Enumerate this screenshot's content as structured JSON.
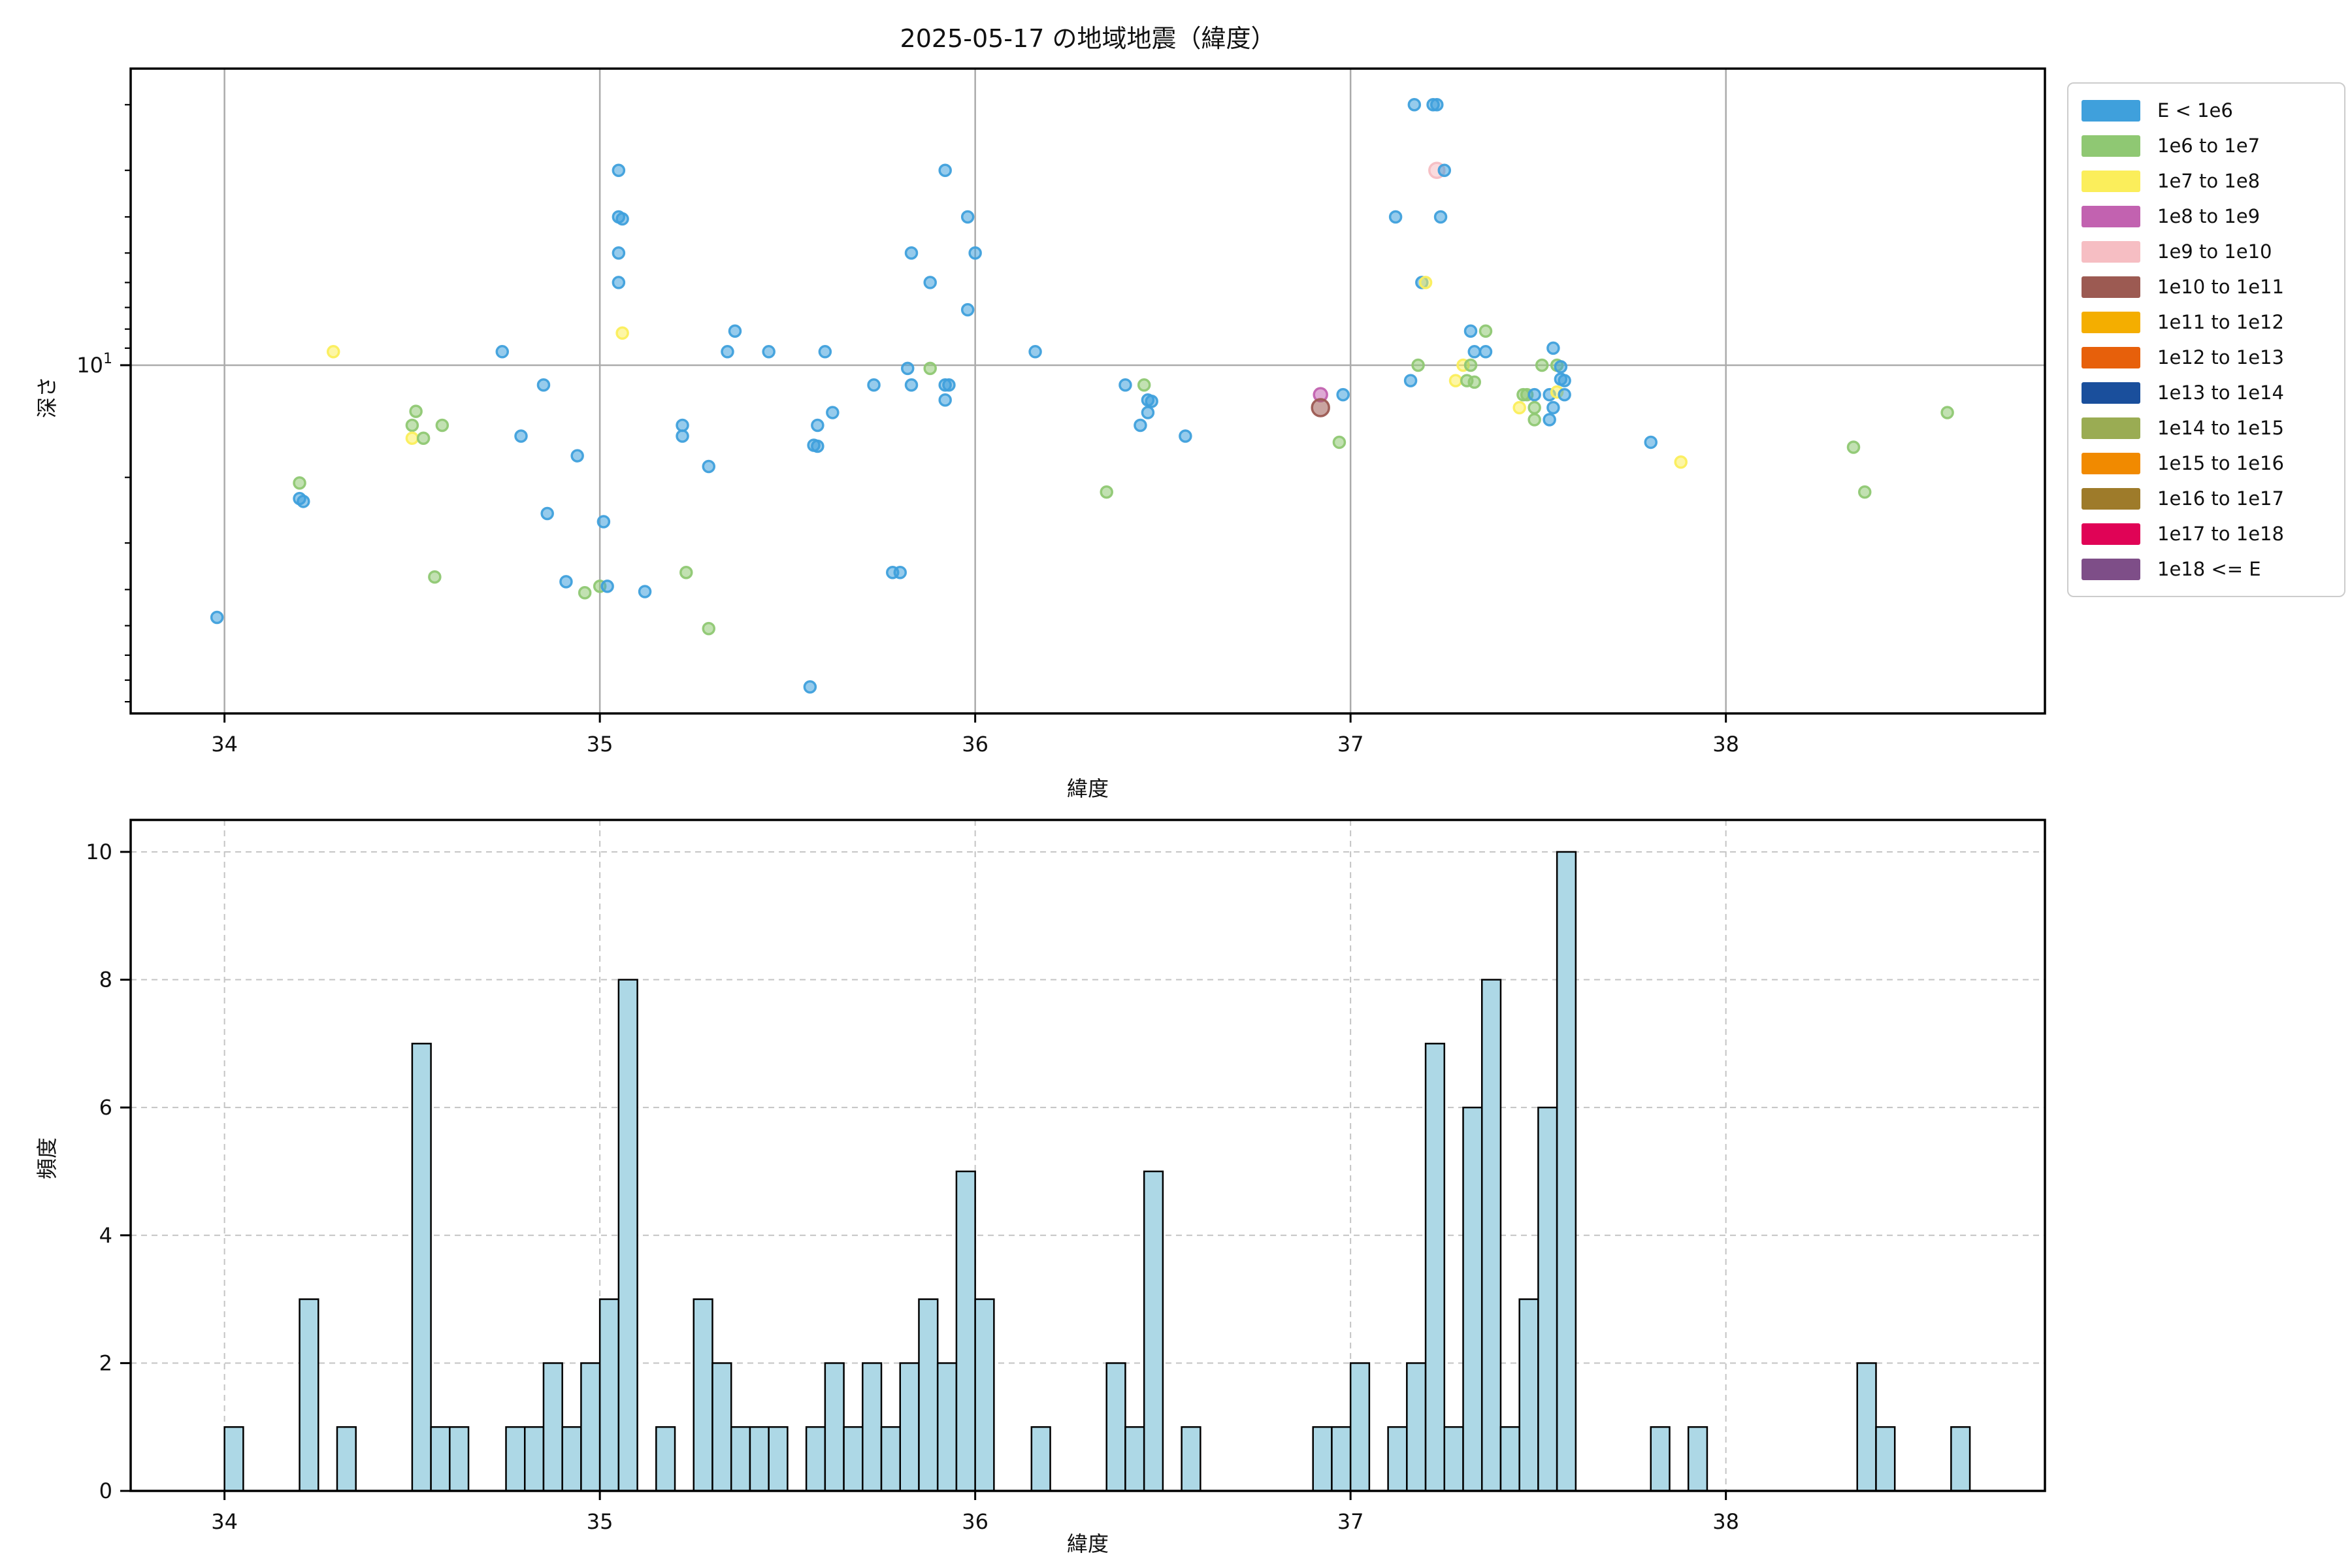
{
  "chart_data": [
    {
      "type": "scatter",
      "title": "2025-05-17 の地域地震（緯度）",
      "xlabel": "緯度",
      "ylabel": "深さ",
      "xlim": [
        33.75,
        38.85
      ],
      "x_ticks": [
        34,
        35,
        36,
        37,
        38
      ],
      "y_scale": "log",
      "y_inverted": true,
      "ylim_top": 1.6,
      "ylim_bottom": 86,
      "y_major_tick": 10,
      "y_major_label_base": "10",
      "y_major_label_exp": "1",
      "y_minor_ticks": [
        2,
        3,
        4,
        5,
        6,
        7,
        8,
        9,
        20,
        30,
        40,
        50,
        60,
        70,
        80
      ],
      "grid_x": [
        34,
        35,
        36,
        37,
        38
      ],
      "grid_y": [
        10
      ],
      "legend_position": "upper right, outside axes",
      "legend": [
        {
          "label": "E < 1e6",
          "color": "#3FA0DC"
        },
        {
          "label": "1e6 to 1e7",
          "color": "#8FC873"
        },
        {
          "label": "1e7 to 1e8",
          "color": "#FBEE5B"
        },
        {
          "label": "1e8 to 1e9",
          "color": "#C262B0"
        },
        {
          "label": "1e9 to 1e10",
          "color": "#F6BEC3"
        },
        {
          "label": "1e10 to 1e11",
          "color": "#9C5A52"
        },
        {
          "label": "1e11 to 1e12",
          "color": "#F4AE00"
        },
        {
          "label": "1e12 to 1e13",
          "color": "#E7600B"
        },
        {
          "label": "1e13 to 1e14",
          "color": "#1A4F9C"
        },
        {
          "label": "1e14 to 1e15",
          "color": "#9AAC53"
        },
        {
          "label": "1e15 to 1e16",
          "color": "#F18A00"
        },
        {
          "label": "1e16 to 1e17",
          "color": "#9E7B2A"
        },
        {
          "label": "1e17 to 1e18",
          "color": "#E00356"
        },
        {
          "label": "1e18 <= E",
          "color": "#7E4E88"
        }
      ],
      "classes": {
        "b": {
          "legend": "E < 1e6",
          "color": "#3FA0DC",
          "r": 8.5
        },
        "g": {
          "legend": "1e6 to 1e7",
          "color": "#8FC873",
          "r": 8.5
        },
        "y": {
          "legend": "1e7 to 1e8",
          "color": "#FBEE5B",
          "r": 8.5
        },
        "m": {
          "legend": "1e8 to 1e9",
          "color": "#C262B0",
          "r": 10
        },
        "p": {
          "legend": "1e9 to 1e10",
          "color": "#F6BEC3",
          "r": 11.5
        },
        "br": {
          "legend": "1e10 to 1e11",
          "color": "#9C5A52",
          "r": 13
        }
      },
      "points": [
        [
          33.98,
          47.5,
          "b"
        ],
        [
          34.2,
          20.7,
          "g"
        ],
        [
          34.2,
          22.8,
          "b"
        ],
        [
          34.21,
          23.2,
          "b"
        ],
        [
          34.29,
          9.2,
          "y"
        ],
        [
          34.5,
          14.5,
          "g"
        ],
        [
          34.51,
          13.3,
          "g"
        ],
        [
          34.5,
          15.7,
          "y"
        ],
        [
          34.53,
          15.7,
          "g"
        ],
        [
          34.58,
          14.5,
          "g"
        ],
        [
          34.56,
          37.0,
          "g"
        ],
        [
          34.74,
          9.2,
          "b"
        ],
        [
          34.79,
          15.5,
          "b"
        ],
        [
          34.85,
          11.3,
          "b"
        ],
        [
          34.86,
          25.0,
          "b"
        ],
        [
          34.91,
          38.1,
          "b"
        ],
        [
          34.94,
          17.5,
          "b"
        ],
        [
          34.96,
          40.8,
          "g"
        ],
        [
          35.0,
          39.2,
          "g"
        ],
        [
          35.02,
          39.2,
          "b"
        ],
        [
          35.01,
          26.3,
          "b"
        ],
        [
          35.05,
          3.0,
          "b"
        ],
        [
          35.05,
          4.0,
          "b"
        ],
        [
          35.06,
          4.05,
          "b"
        ],
        [
          35.05,
          5.0,
          "b"
        ],
        [
          35.05,
          6.0,
          "b"
        ],
        [
          35.06,
          8.2,
          "y"
        ],
        [
          35.12,
          40.5,
          "b"
        ],
        [
          35.22,
          14.5,
          "b"
        ],
        [
          35.22,
          15.5,
          "b"
        ],
        [
          35.23,
          36.0,
          "g"
        ],
        [
          35.29,
          18.7,
          "b"
        ],
        [
          35.29,
          50.9,
          "g"
        ],
        [
          35.34,
          9.2,
          "b"
        ],
        [
          35.36,
          8.1,
          "b"
        ],
        [
          35.45,
          9.2,
          "b"
        ],
        [
          35.56,
          73.0,
          "b"
        ],
        [
          35.57,
          16.4,
          "b"
        ],
        [
          35.58,
          16.5,
          "b"
        ],
        [
          35.58,
          14.5,
          "b"
        ],
        [
          35.6,
          9.2,
          "b"
        ],
        [
          35.62,
          13.4,
          "b"
        ],
        [
          35.73,
          11.3,
          "b"
        ],
        [
          35.78,
          36.0,
          "b"
        ],
        [
          35.8,
          36.0,
          "b"
        ],
        [
          35.82,
          10.2,
          "b"
        ],
        [
          35.83,
          5.0,
          "b"
        ],
        [
          35.83,
          11.3,
          "b"
        ],
        [
          35.88,
          6.0,
          "b"
        ],
        [
          35.88,
          10.2,
          "g"
        ],
        [
          35.92,
          3.0,
          "b"
        ],
        [
          35.92,
          11.3,
          "b"
        ],
        [
          35.93,
          11.3,
          "b"
        ],
        [
          35.92,
          12.4,
          "b"
        ],
        [
          35.98,
          4.0,
          "b"
        ],
        [
          35.98,
          7.1,
          "b"
        ],
        [
          36.0,
          5.0,
          "b"
        ],
        [
          36.16,
          9.2,
          "b"
        ],
        [
          36.35,
          21.9,
          "g"
        ],
        [
          36.4,
          11.3,
          "b"
        ],
        [
          36.45,
          11.3,
          "g"
        ],
        [
          36.46,
          12.4,
          "b"
        ],
        [
          36.47,
          12.5,
          "b"
        ],
        [
          36.46,
          13.4,
          "b"
        ],
        [
          36.44,
          14.5,
          "b"
        ],
        [
          36.56,
          15.5,
          "b"
        ],
        [
          36.92,
          12.0,
          "m"
        ],
        [
          36.92,
          13.0,
          "br"
        ],
        [
          36.98,
          12.0,
          "b"
        ],
        [
          36.97,
          16.1,
          "g"
        ],
        [
          37.12,
          4.0,
          "b"
        ],
        [
          37.17,
          2.0,
          "b"
        ],
        [
          37.22,
          2.0,
          "b"
        ],
        [
          37.23,
          2.0,
          "b"
        ],
        [
          37.23,
          3.0,
          "p"
        ],
        [
          37.25,
          3.0,
          "b"
        ],
        [
          37.24,
          4.0,
          "b"
        ],
        [
          37.19,
          6.0,
          "b"
        ],
        [
          37.2,
          6.0,
          "y"
        ],
        [
          37.16,
          11.0,
          "b"
        ],
        [
          37.18,
          10.0,
          "g"
        ],
        [
          37.28,
          11.0,
          "y"
        ],
        [
          37.31,
          11.0,
          "g"
        ],
        [
          37.33,
          11.1,
          "g"
        ],
        [
          37.3,
          10.0,
          "y"
        ],
        [
          37.32,
          10.0,
          "g"
        ],
        [
          37.32,
          8.1,
          "b"
        ],
        [
          37.36,
          8.1,
          "g"
        ],
        [
          37.33,
          9.2,
          "b"
        ],
        [
          37.36,
          9.2,
          "b"
        ],
        [
          37.54,
          9.0,
          "b"
        ],
        [
          37.51,
          10.0,
          "g"
        ],
        [
          37.55,
          10.0,
          "g"
        ],
        [
          37.56,
          10.1,
          "b"
        ],
        [
          37.56,
          10.9,
          "b"
        ],
        [
          37.57,
          11.0,
          "b"
        ],
        [
          37.46,
          12.0,
          "g"
        ],
        [
          37.47,
          12.0,
          "g"
        ],
        [
          37.49,
          12.0,
          "b"
        ],
        [
          37.53,
          12.0,
          "b"
        ],
        [
          37.55,
          11.8,
          "y"
        ],
        [
          37.57,
          12.0,
          "b"
        ],
        [
          37.45,
          13.0,
          "y"
        ],
        [
          37.49,
          13.0,
          "g"
        ],
        [
          37.54,
          13.0,
          "b"
        ],
        [
          37.49,
          14.0,
          "g"
        ],
        [
          37.53,
          14.0,
          "b"
        ],
        [
          37.8,
          16.1,
          "b"
        ],
        [
          37.88,
          18.2,
          "y"
        ],
        [
          38.34,
          16.6,
          "g"
        ],
        [
          38.37,
          21.9,
          "g"
        ],
        [
          38.59,
          13.4,
          "g"
        ]
      ]
    },
    {
      "type": "bar",
      "subtype": "histogram",
      "xlabel": "緯度",
      "ylabel": "頻度",
      "xlim": [
        33.75,
        38.85
      ],
      "x_ticks": [
        34,
        35,
        36,
        37,
        38
      ],
      "ylim": [
        0,
        10.5
      ],
      "y_ticks": [
        0,
        2,
        4,
        6,
        8,
        10
      ],
      "grid": "dashed, both axes",
      "bar_color": "#ADD8E6",
      "bar_edge_color": "#000000",
      "bin_width": 0.05,
      "bars": [
        [
          34.0,
          1
        ],
        [
          34.2,
          3
        ],
        [
          34.3,
          1
        ],
        [
          34.5,
          7
        ],
        [
          34.55,
          1
        ],
        [
          34.6,
          1
        ],
        [
          34.75,
          1
        ],
        [
          34.8,
          1
        ],
        [
          34.85,
          2
        ],
        [
          34.9,
          1
        ],
        [
          34.95,
          2
        ],
        [
          35.0,
          3
        ],
        [
          35.05,
          8
        ],
        [
          35.15,
          1
        ],
        [
          35.25,
          3
        ],
        [
          35.3,
          2
        ],
        [
          35.35,
          1
        ],
        [
          35.4,
          1
        ],
        [
          35.45,
          1
        ],
        [
          35.55,
          1
        ],
        [
          35.6,
          2
        ],
        [
          35.65,
          1
        ],
        [
          35.7,
          2
        ],
        [
          35.75,
          1
        ],
        [
          35.8,
          2
        ],
        [
          35.85,
          3
        ],
        [
          35.9,
          2
        ],
        [
          35.95,
          5
        ],
        [
          36.0,
          3
        ],
        [
          36.15,
          1
        ],
        [
          36.35,
          2
        ],
        [
          36.4,
          1
        ],
        [
          36.45,
          5
        ],
        [
          36.55,
          1
        ],
        [
          36.9,
          1
        ],
        [
          36.95,
          1
        ],
        [
          37.0,
          2
        ],
        [
          37.1,
          1
        ],
        [
          37.15,
          2
        ],
        [
          37.2,
          7
        ],
        [
          37.25,
          1
        ],
        [
          37.3,
          6
        ],
        [
          37.35,
          8
        ],
        [
          37.4,
          1
        ],
        [
          37.45,
          3
        ],
        [
          37.5,
          6
        ],
        [
          37.55,
          10
        ],
        [
          37.8,
          1
        ],
        [
          37.9,
          1
        ],
        [
          38.35,
          2
        ],
        [
          38.4,
          1
        ],
        [
          38.6,
          1
        ]
      ]
    }
  ]
}
